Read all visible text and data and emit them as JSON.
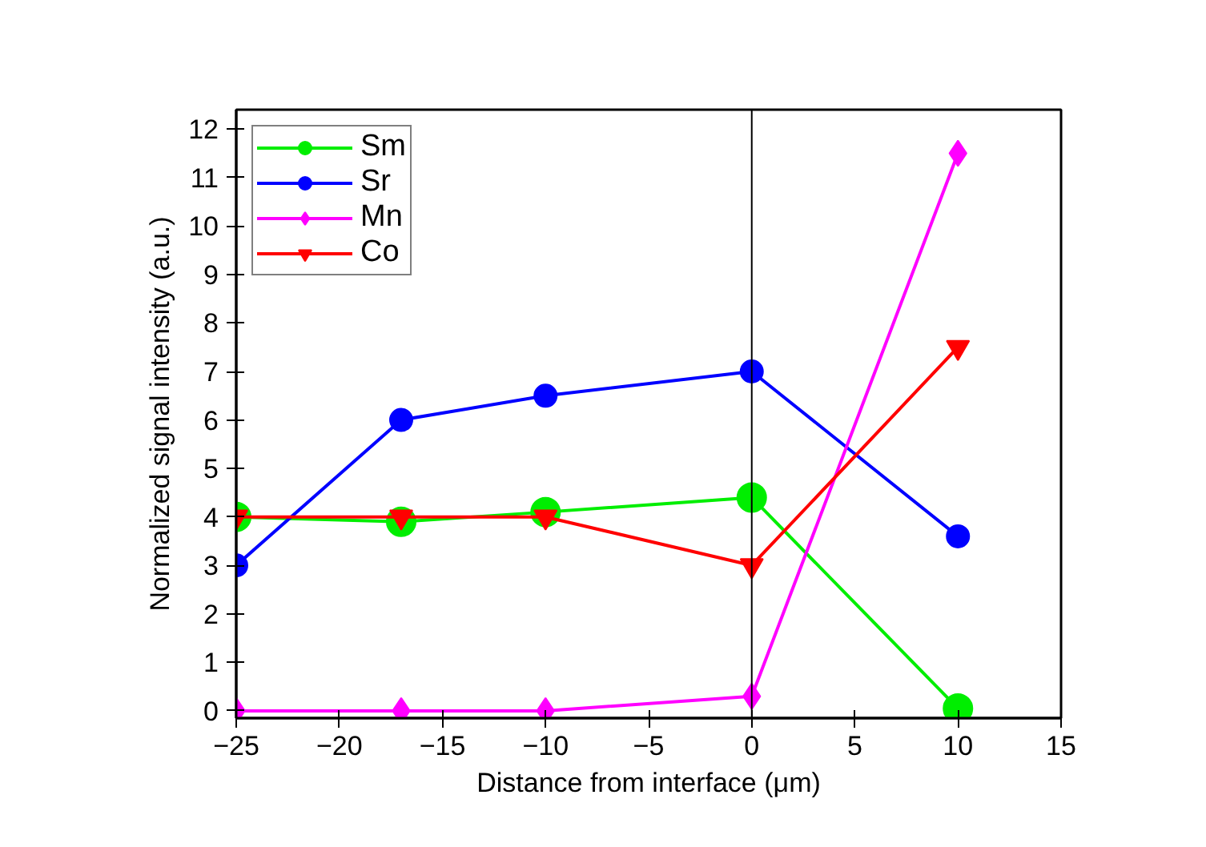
{
  "chart_data": {
    "type": "line",
    "xlabel": "Distance from interface (μm)",
    "ylabel": "Normalized signal intensity (a.u.)",
    "x": [
      -25,
      -17,
      -10,
      0,
      10
    ],
    "series": [
      {
        "name": "Sm",
        "color": "#00ee00",
        "marker": "circle",
        "values": [
          4.0,
          3.9,
          4.1,
          4.4,
          0.05
        ]
      },
      {
        "name": "Sr",
        "color": "#0000ff",
        "marker": "circle",
        "values": [
          3.0,
          6.0,
          6.5,
          7.0,
          3.6
        ]
      },
      {
        "name": "Mn",
        "color": "#ff00ff",
        "marker": "diamond",
        "values": [
          0.0,
          0.0,
          0.0,
          0.3,
          11.5
        ]
      },
      {
        "name": "Co",
        "color": "#ff0000",
        "marker": "triangle",
        "values": [
          4.0,
          4.0,
          4.0,
          3.0,
          7.5
        ]
      }
    ],
    "xlim": [
      -25,
      15
    ],
    "xticks": [
      -25,
      -20,
      -15,
      -10,
      -5,
      0,
      5,
      10,
      15
    ],
    "ylim": [
      -0.15,
      12.4
    ],
    "yticks": [
      0,
      1,
      2,
      3,
      4,
      5,
      6,
      7,
      8,
      9,
      10,
      11,
      12
    ],
    "ref_lines": [
      {
        "axis": "x",
        "value": 0,
        "color": "#000000"
      }
    ],
    "grid": false,
    "legend": "top left"
  }
}
